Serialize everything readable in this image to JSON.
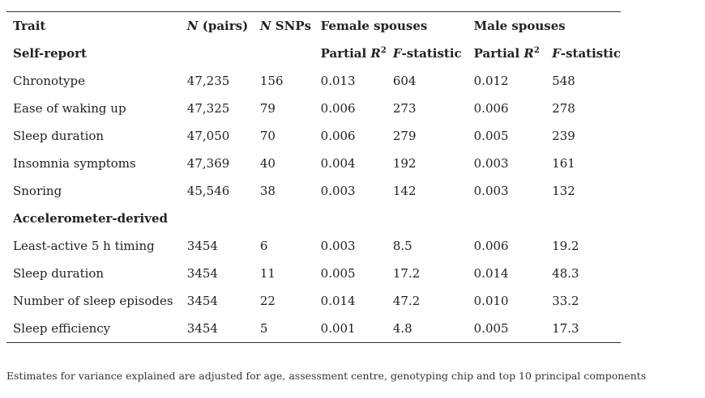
{
  "table": {
    "headers": {
      "trait": "Trait",
      "n_pairs_italic": "N",
      "n_pairs_rest": " (pairs)",
      "n_snps_italic": "N",
      "n_snps_rest": " SNPs",
      "female_spouses": "Female spouses",
      "male_spouses": "Male spouses"
    },
    "subheaders": {
      "partial_r2_prefix": "Partial ",
      "partial_r2_R": "R",
      "partial_r2_sup": "2",
      "f_stat_italic": "F",
      "f_stat_rest": "-statistic"
    },
    "sections": [
      {
        "title": "Self-report",
        "rows": [
          [
            "Chronotype",
            "47,235",
            "156",
            "0.013",
            "604",
            "0.012",
            "548"
          ],
          [
            "Ease of waking up",
            "47,325",
            "79",
            "0.006",
            "273",
            "0.006",
            "278"
          ],
          [
            "Sleep duration",
            "47,050",
            "70",
            "0.006",
            "279",
            "0.005",
            "239"
          ],
          [
            "Insomnia symptoms",
            "47,369",
            "40",
            "0.004",
            "192",
            "0.003",
            "161"
          ],
          [
            "Snoring",
            "45,546",
            "38",
            "0.003",
            "142",
            "0.003",
            "132"
          ]
        ]
      },
      {
        "title": "Accelerometer-derived",
        "rows": [
          [
            "Least-active 5 h timing",
            "3454",
            "6",
            "0.003",
            "8.5",
            "0.006",
            "19.2"
          ],
          [
            "Sleep duration",
            "3454",
            "11",
            "0.005",
            "17.2",
            "0.014",
            "48.3"
          ],
          [
            "Number of sleep episodes",
            "3454",
            "22",
            "0.014",
            "47.2",
            "0.010",
            "33.2"
          ],
          [
            "Sleep efficiency",
            "3454",
            "5",
            "0.001",
            "4.8",
            "0.005",
            "17.3"
          ]
        ]
      }
    ]
  },
  "footnote": "Estimates for variance explained are adjusted for age, assessment centre, genotyping chip and top 10 principal components"
}
